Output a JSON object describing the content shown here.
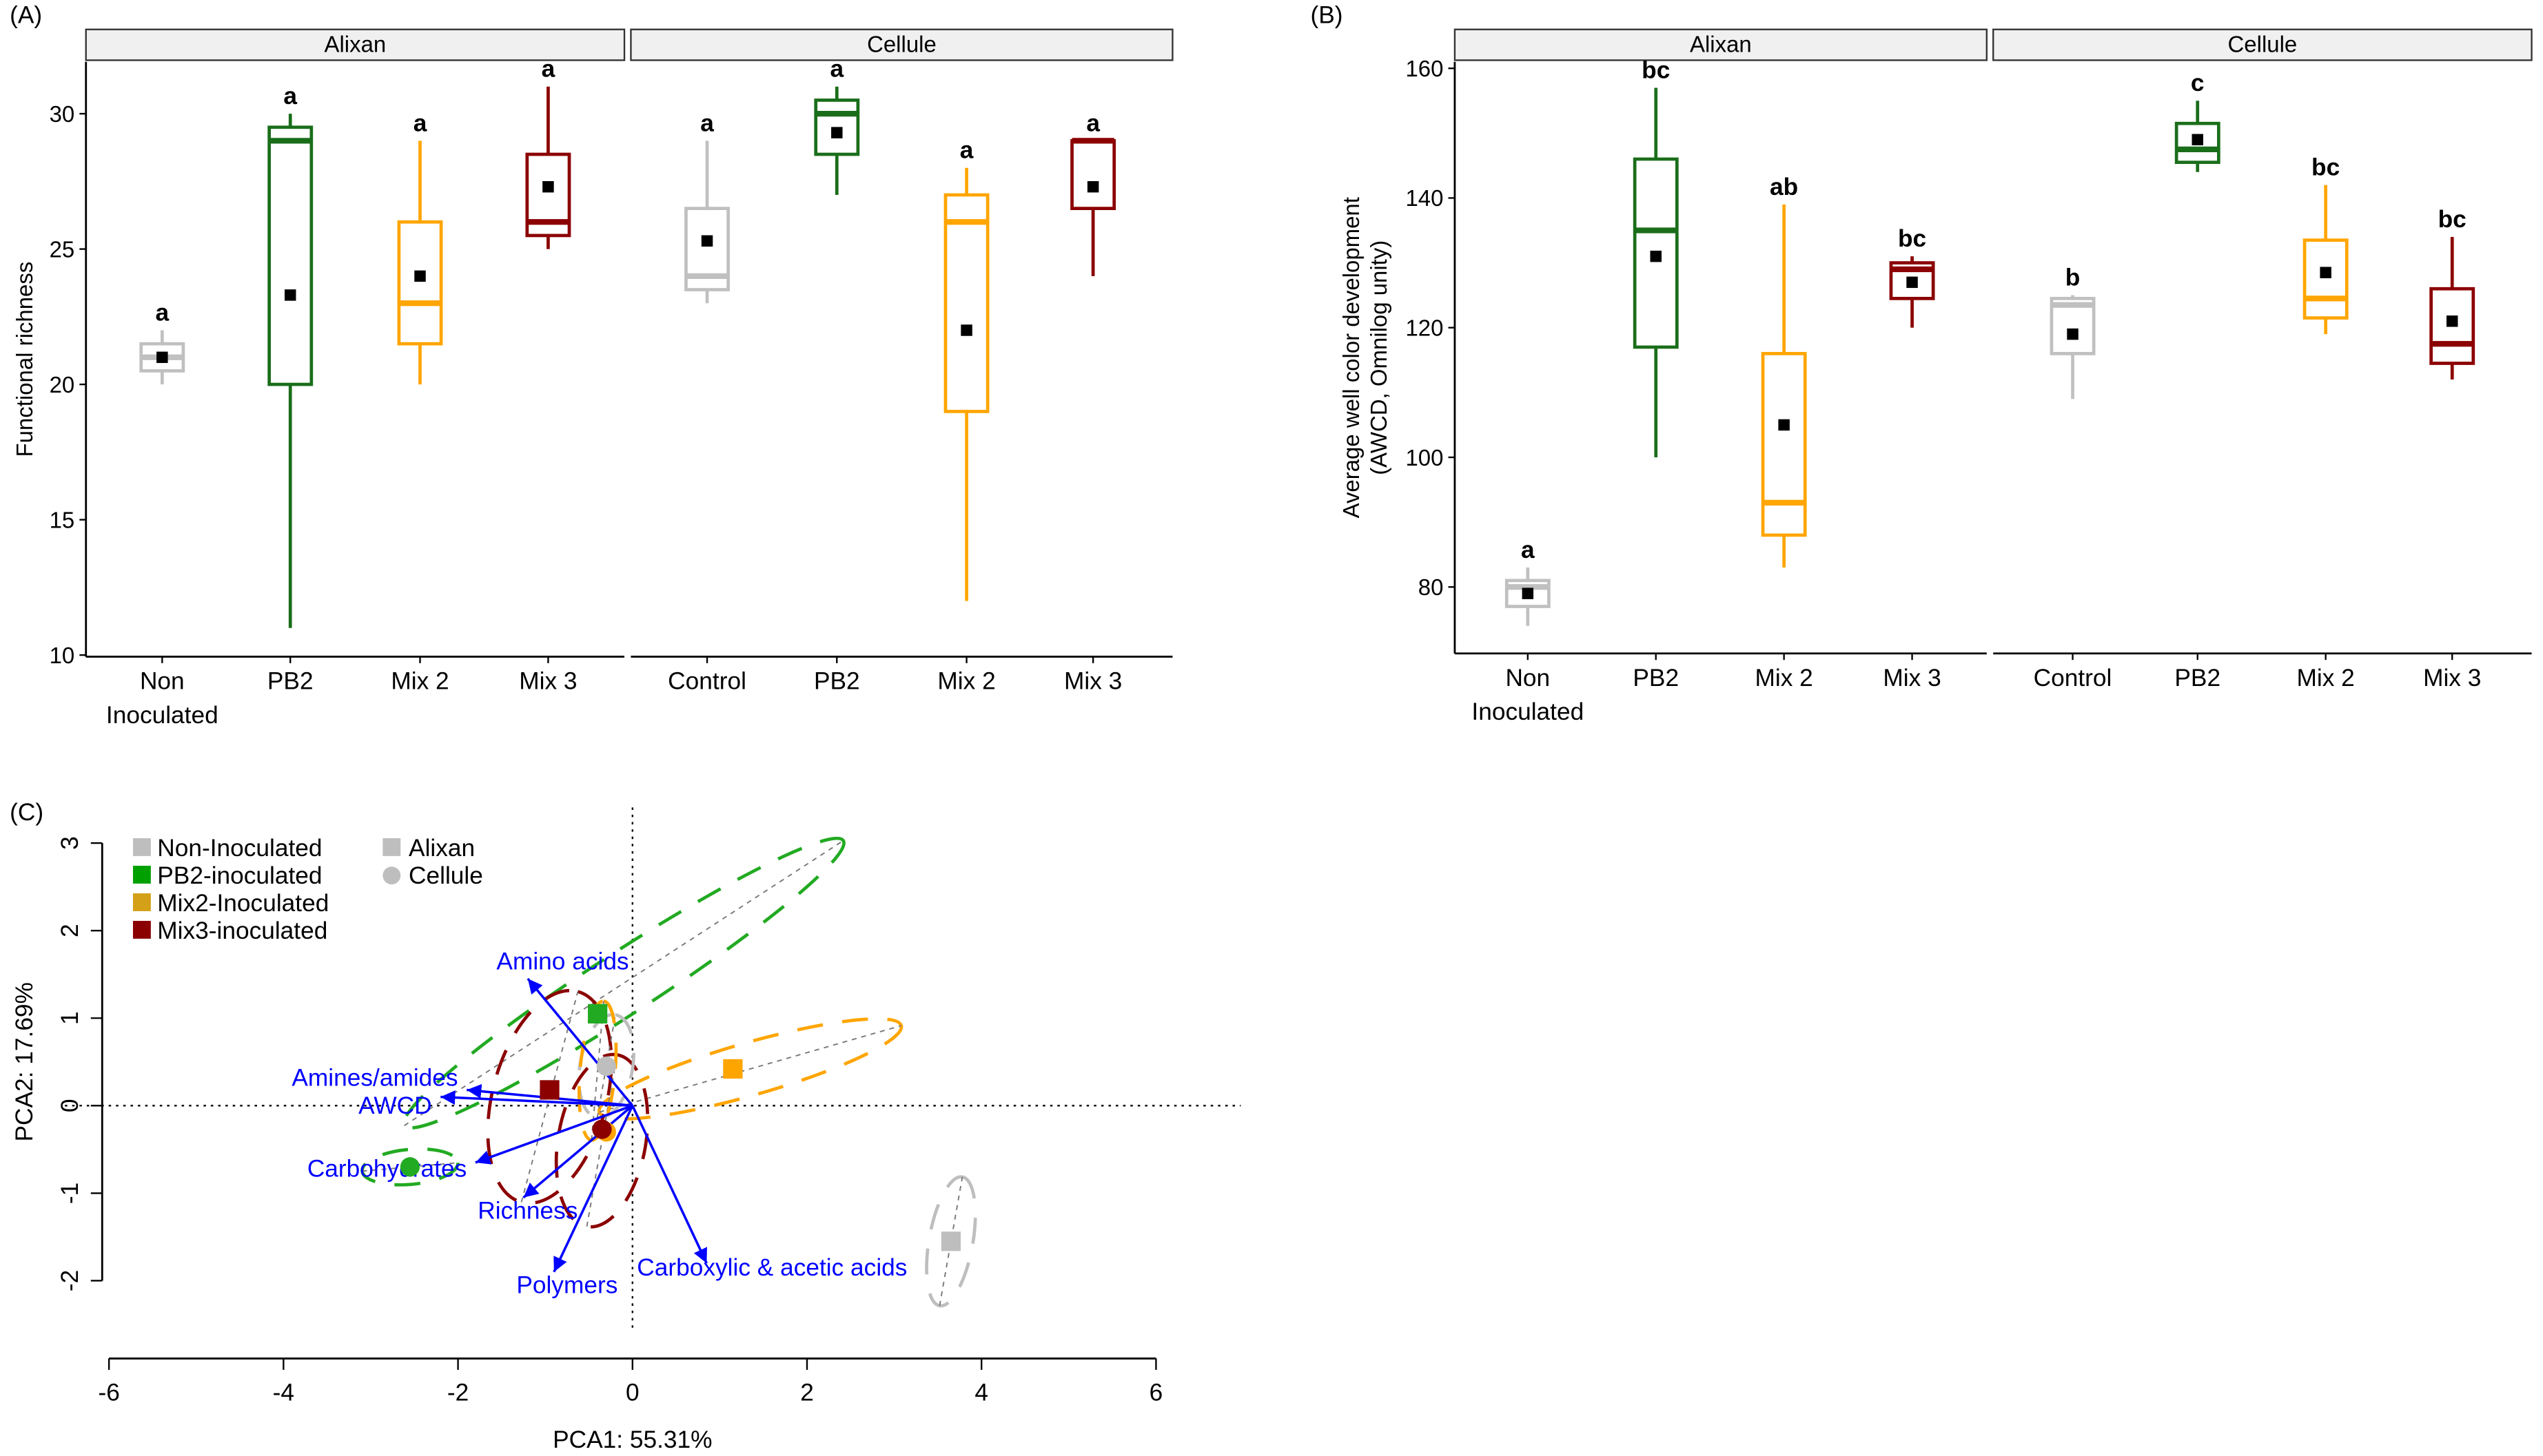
{
  "chart_data": [
    {
      "panel": "(A)",
      "type": "box",
      "ylabel": "Functional richness",
      "ylim": [
        10,
        32
      ],
      "yticks": [
        10,
        15,
        20,
        25,
        30
      ],
      "facets": [
        "Alixan",
        "Cellule"
      ],
      "groups": [
        {
          "facet": 0,
          "label": "Non\nInoculated",
          "color": "#c0c0c0",
          "min": 20,
          "q1": 20.5,
          "median": 21,
          "q3": 21.5,
          "max": 22,
          "mean": 21,
          "letter": "a"
        },
        {
          "facet": 0,
          "label": "PB2",
          "color": "#1a6e1a",
          "min": 11,
          "q1": 20,
          "median": 29,
          "q3": 29.5,
          "max": 30,
          "mean": 23.3,
          "letter": "a"
        },
        {
          "facet": 0,
          "label": "Mix 2",
          "color": "#ffa500",
          "min": 20,
          "q1": 21.5,
          "median": 23,
          "q3": 26,
          "max": 29,
          "mean": 24,
          "letter": "a"
        },
        {
          "facet": 0,
          "label": "Mix 3",
          "color": "#8b0000",
          "min": 25,
          "q1": 25.5,
          "median": 26,
          "q3": 28.5,
          "max": 31,
          "mean": 27.3,
          "letter": "a"
        },
        {
          "facet": 1,
          "label": "Control",
          "color": "#c0c0c0",
          "min": 23,
          "q1": 23.5,
          "median": 24,
          "q3": 26.5,
          "max": 29,
          "mean": 25.3,
          "letter": "a"
        },
        {
          "facet": 1,
          "label": "PB2",
          "color": "#1a6e1a",
          "min": 27,
          "q1": 28.5,
          "median": 30,
          "q3": 30.5,
          "max": 31,
          "mean": 29.3,
          "letter": "a"
        },
        {
          "facet": 1,
          "label": "Mix 2",
          "color": "#ffa500",
          "min": 12,
          "q1": 19,
          "median": 26,
          "q3": 27,
          "max": 28,
          "mean": 22,
          "letter": "a"
        },
        {
          "facet": 1,
          "label": "Mix 3",
          "color": "#8b0000",
          "min": 24,
          "q1": 26.5,
          "median": 29,
          "q3": 29,
          "max": 29,
          "mean": 27.3,
          "letter": "a"
        }
      ]
    },
    {
      "panel": "(B)",
      "type": "box",
      "ylabel": "Average well color development\n(AWCD, Omnilog unity)",
      "ylim": [
        70,
        162
      ],
      "yticks": [
        80,
        100,
        120,
        140,
        160
      ],
      "facets": [
        "Alixan",
        "Cellule"
      ],
      "groups": [
        {
          "facet": 0,
          "label": "Non\nInoculated",
          "color": "#c0c0c0",
          "min": 74,
          "q1": 77,
          "median": 80,
          "q3": 81,
          "max": 83,
          "mean": 79,
          "letter": "a"
        },
        {
          "facet": 0,
          "label": "PB2",
          "color": "#1a6e1a",
          "min": 100,
          "q1": 117,
          "median": 135,
          "q3": 146,
          "max": 157,
          "mean": 131,
          "letter": "bc"
        },
        {
          "facet": 0,
          "label": "Mix 2",
          "color": "#ffa500",
          "min": 83,
          "q1": 88,
          "median": 93,
          "q3": 116,
          "max": 139,
          "mean": 105,
          "letter": "ab"
        },
        {
          "facet": 0,
          "label": "Mix 3",
          "color": "#8b0000",
          "min": 120,
          "q1": 124.5,
          "median": 129,
          "q3": 130,
          "max": 131,
          "mean": 127,
          "letter": "bc"
        },
        {
          "facet": 1,
          "label": "Control",
          "color": "#c0c0c0",
          "min": 109,
          "q1": 116,
          "median": 123.5,
          "q3": 124.5,
          "max": 125,
          "mean": 119,
          "letter": "b"
        },
        {
          "facet": 1,
          "label": "PB2",
          "color": "#1a6e1a",
          "min": 144,
          "q1": 145.5,
          "median": 147.5,
          "q3": 151.5,
          "max": 155,
          "mean": 149,
          "letter": "c"
        },
        {
          "facet": 1,
          "label": "Mix 2",
          "color": "#ffa500",
          "min": 119,
          "q1": 121.5,
          "median": 124.5,
          "q3": 133.5,
          "max": 142,
          "mean": 128.5,
          "letter": "bc"
        },
        {
          "facet": 1,
          "label": "Mix 3",
          "color": "#8b0000",
          "min": 112,
          "q1": 114.5,
          "median": 117.5,
          "q3": 126,
          "max": 134,
          "mean": 121,
          "letter": "bc"
        }
      ]
    },
    {
      "panel": "(C)",
      "type": "scatter",
      "xlabel": "PCA1: 55.31%",
      "ylabel": "PCA2: 17.69%",
      "xlim": [
        -6,
        6
      ],
      "ylim": [
        -2,
        3
      ],
      "xticks": [
        -6,
        -4,
        -2,
        0,
        2,
        4,
        6
      ],
      "yticks": [
        -2,
        -1,
        0,
        1,
        2,
        3
      ],
      "legend": {
        "treatments": [
          {
            "label": "Non-Inoculated",
            "color": "#bebebe"
          },
          {
            "label": "PB2-inoculated",
            "color": "#00a000"
          },
          {
            "label": "Mix2-Inoculated",
            "color": "#d4a017"
          },
          {
            "label": "Mix3-inoculated",
            "color": "#8b0000"
          }
        ],
        "substrates": [
          {
            "label": "Alixan",
            "shape": "square"
          },
          {
            "label": "Cellule",
            "shape": "circle"
          }
        ],
        "position": "top-left"
      },
      "points": [
        {
          "treatment": "PB2",
          "substrate": "Alixan",
          "x": -0.4,
          "y": 1.05,
          "color": "#22aa22"
        },
        {
          "treatment": "Mix2",
          "substrate": "Alixan",
          "x": 1.15,
          "y": 0.42,
          "color": "#ffa500"
        },
        {
          "treatment": "Mix3",
          "substrate": "Alixan",
          "x": -0.95,
          "y": 0.18,
          "color": "#8b0000"
        },
        {
          "treatment": "Non",
          "substrate": "Alixan",
          "x": 3.65,
          "y": -1.55,
          "color": "#bebebe"
        },
        {
          "treatment": "Non",
          "substrate": "Cellule",
          "x": -0.3,
          "y": 0.45,
          "color": "#bebebe"
        },
        {
          "treatment": "PB2",
          "substrate": "Cellule",
          "x": -2.55,
          "y": -0.7,
          "color": "#22aa22"
        },
        {
          "treatment": "Mix2",
          "substrate": "Cellule",
          "x": -0.3,
          "y": -0.3,
          "color": "#ffa500"
        },
        {
          "treatment": "Mix3",
          "substrate": "Cellule",
          "x": -0.35,
          "y": -0.27,
          "color": "#8b0000"
        }
      ],
      "ellipses": [
        {
          "cx": -0.1,
          "cy": 1.4,
          "rx": 3.0,
          "ry": 0.35,
          "angle": 33,
          "color": "#22aa22"
        },
        {
          "cx": 1.35,
          "cy": 0.42,
          "rx": 1.8,
          "ry": 0.3,
          "angle": 16,
          "color": "#ffa500"
        },
        {
          "cx": 3.65,
          "cy": -1.55,
          "rx": 0.75,
          "ry": 0.25,
          "angle": 80,
          "color": "#bebebe"
        },
        {
          "cx": -2.55,
          "cy": -0.7,
          "rx": 0.55,
          "ry": 0.2,
          "angle": 5,
          "color": "#22aa22"
        },
        {
          "cx": -0.95,
          "cy": 0.1,
          "rx": 1.25,
          "ry": 0.65,
          "angle": 75,
          "color": "#8b0000"
        },
        {
          "cx": -0.35,
          "cy": -0.4,
          "rx": 1.0,
          "ry": 0.5,
          "angle": 80,
          "color": "#8b0000"
        },
        {
          "cx": -0.3,
          "cy": 0.45,
          "rx": 0.6,
          "ry": 0.3,
          "angle": 80,
          "color": "#bebebe"
        },
        {
          "cx": -0.4,
          "cy": 0.4,
          "rx": 0.8,
          "ry": 0.2,
          "angle": 85,
          "color": "#ffa500"
        }
      ],
      "arrows": [
        {
          "label": "Amino acids",
          "x": -1.2,
          "y": 1.45
        },
        {
          "label": "Amines/amides",
          "x": -1.9,
          "y": 0.18
        },
        {
          "label": "AWCD",
          "x": -2.2,
          "y": 0.1
        },
        {
          "label": "Carbohydrates",
          "x": -1.8,
          "y": -0.65
        },
        {
          "label": "Richness",
          "x": -1.25,
          "y": -1.05
        },
        {
          "label": "Polymers",
          "x": -0.9,
          "y": -1.9
        },
        {
          "label": "Carboxylic & acetic acids",
          "x": 0.85,
          "y": -1.8
        }
      ]
    }
  ]
}
